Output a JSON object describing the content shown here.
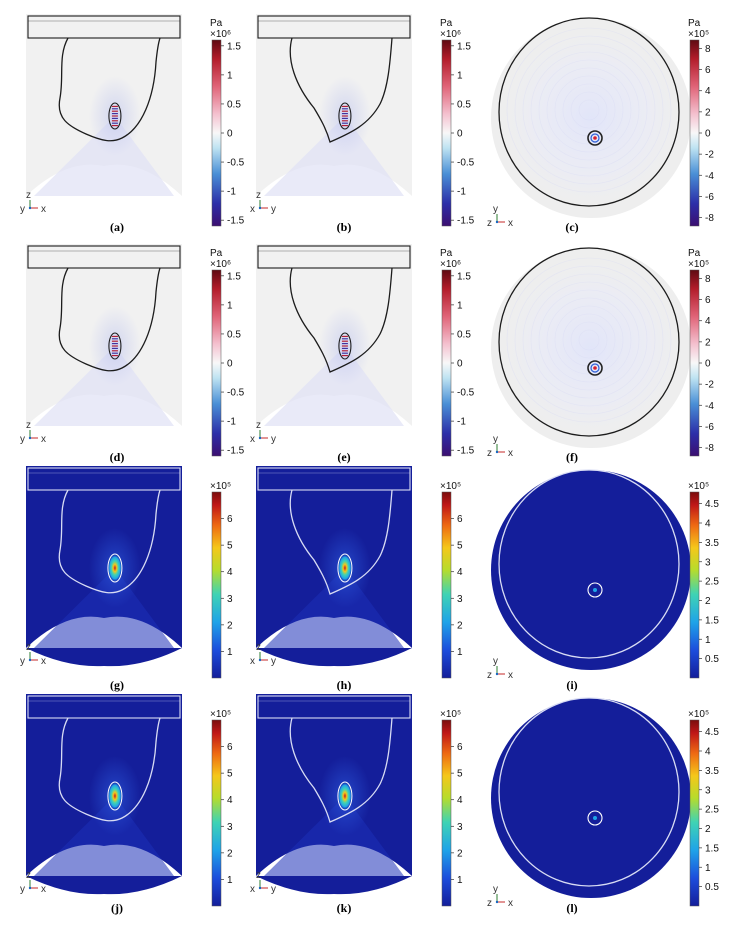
{
  "colors": {
    "pressure_bg": "#f1f1f1",
    "intensity_bg": "#141e9a",
    "outline_dark": "#1c1c1c",
    "outline_light": "#d8dcf4",
    "axis_z": "#2e7d32",
    "axis_x": "#c62828",
    "axis_y": "#1565c0"
  },
  "panels": [
    {
      "id": "a",
      "caption": "(a)",
      "type": "pressure",
      "view": "side",
      "dark": false,
      "offset": false,
      "axes": {
        "vertical": "z",
        "left": "y",
        "right": "x"
      }
    },
    {
      "id": "b",
      "caption": "(b)",
      "type": "pressure",
      "view": "side",
      "dark": false,
      "offset": true,
      "axes": {
        "vertical": "z",
        "left": "x",
        "right": "y"
      }
    },
    {
      "id": "c",
      "caption": "(c)",
      "type": "pressure",
      "view": "top",
      "dark": false,
      "axes": {
        "vertical": "y",
        "left": "z",
        "right": "x"
      }
    },
    {
      "id": "d",
      "caption": "(d)",
      "type": "pressure",
      "view": "side",
      "dark": false,
      "offset": false,
      "axes": {
        "vertical": "z",
        "left": "y",
        "right": "x"
      }
    },
    {
      "id": "e",
      "caption": "(e)",
      "type": "pressure",
      "view": "side",
      "dark": false,
      "offset": true,
      "axes": {
        "vertical": "z",
        "left": "x",
        "right": "y"
      }
    },
    {
      "id": "f",
      "caption": "(f)",
      "type": "pressure",
      "view": "top",
      "dark": false,
      "axes": {
        "vertical": "y",
        "left": "z",
        "right": "x"
      }
    },
    {
      "id": "g",
      "caption": "(g)",
      "type": "intensity",
      "view": "side",
      "dark": true,
      "offset": false,
      "axes": {
        "vertical": "z",
        "left": "y",
        "right": "x"
      }
    },
    {
      "id": "h",
      "caption": "(h)",
      "type": "intensity",
      "view": "side",
      "dark": true,
      "offset": true,
      "axes": {
        "vertical": "z",
        "left": "x",
        "right": "y"
      }
    },
    {
      "id": "i",
      "caption": "(i)",
      "type": "intensity",
      "view": "top",
      "dark": true,
      "axes": {
        "vertical": "y",
        "left": "z",
        "right": "x"
      }
    },
    {
      "id": "j",
      "caption": "(j)",
      "type": "intensity",
      "view": "side",
      "dark": true,
      "offset": false,
      "axes": {
        "vertical": "z",
        "left": "y",
        "right": "x"
      }
    },
    {
      "id": "k",
      "caption": "(k)",
      "type": "intensity",
      "view": "side",
      "dark": true,
      "offset": true,
      "axes": {
        "vertical": "z",
        "left": "x",
        "right": "y"
      }
    },
    {
      "id": "l",
      "caption": "(l)",
      "type": "intensity",
      "view": "top",
      "dark": true,
      "axes": {
        "vertical": "y",
        "left": "z",
        "right": "x"
      }
    }
  ],
  "colorbars": [
    {
      "id": "cb-a",
      "scheme": "diverging",
      "unit": "Pa",
      "exponent": "×10⁶",
      "ticks": [
        "1.5",
        "1",
        "0.5",
        "0",
        "-0.5",
        "-1",
        "-1.5"
      ],
      "range": [
        -1.6,
        1.6
      ],
      "tick_values": [
        1.5,
        1,
        0.5,
        0,
        -0.5,
        -1,
        -1.5
      ]
    },
    {
      "id": "cb-b",
      "scheme": "diverging",
      "unit": "Pa",
      "exponent": "×10⁶",
      "ticks": [
        "1.5",
        "1",
        "0.5",
        "0",
        "-0.5",
        "-1",
        "-1.5"
      ],
      "range": [
        -1.6,
        1.6
      ],
      "tick_values": [
        1.5,
        1,
        0.5,
        0,
        -0.5,
        -1,
        -1.5
      ]
    },
    {
      "id": "cb-c",
      "scheme": "diverging",
      "unit": "Pa",
      "exponent": "×10⁵",
      "ticks": [
        "8",
        "6",
        "4",
        "2",
        "0",
        "-2",
        "-4",
        "-6",
        "-8"
      ],
      "range": [
        -8.8,
        8.8
      ],
      "tick_values": [
        8,
        6,
        4,
        2,
        0,
        -2,
        -4,
        -6,
        -8
      ]
    },
    {
      "id": "cb-d",
      "scheme": "diverging",
      "unit": "Pa",
      "exponent": "×10⁶",
      "ticks": [
        "1.5",
        "1",
        "0.5",
        "0",
        "-0.5",
        "-1",
        "-1.5"
      ],
      "range": [
        -1.6,
        1.6
      ],
      "tick_values": [
        1.5,
        1,
        0.5,
        0,
        -0.5,
        -1,
        -1.5
      ]
    },
    {
      "id": "cb-e",
      "scheme": "diverging",
      "unit": "Pa",
      "exponent": "×10⁶",
      "ticks": [
        "1.5",
        "1",
        "0.5",
        "0",
        "-0.5",
        "-1",
        "-1.5"
      ],
      "range": [
        -1.6,
        1.6
      ],
      "tick_values": [
        1.5,
        1,
        0.5,
        0,
        -0.5,
        -1,
        -1.5
      ]
    },
    {
      "id": "cb-f",
      "scheme": "diverging",
      "unit": "Pa",
      "exponent": "×10⁵",
      "ticks": [
        "8",
        "6",
        "4",
        "2",
        "0",
        "-2",
        "-4",
        "-6",
        "-8"
      ],
      "range": [
        -8.8,
        8.8
      ],
      "tick_values": [
        8,
        6,
        4,
        2,
        0,
        -2,
        -4,
        -6,
        -8
      ]
    },
    {
      "id": "cb-g",
      "scheme": "jet",
      "unit": "",
      "exponent": "×10⁵",
      "ticks": [
        "6",
        "5",
        "4",
        "3",
        "2",
        "1"
      ],
      "range": [
        0,
        7
      ],
      "tick_values": [
        6,
        5,
        4,
        3,
        2,
        1
      ]
    },
    {
      "id": "cb-h",
      "scheme": "jet",
      "unit": "",
      "exponent": "×10⁵",
      "ticks": [
        "6",
        "5",
        "4",
        "3",
        "2",
        "1"
      ],
      "range": [
        0,
        7
      ],
      "tick_values": [
        6,
        5,
        4,
        3,
        2,
        1
      ]
    },
    {
      "id": "cb-i",
      "scheme": "jet",
      "unit": "",
      "exponent": "×10⁵",
      "ticks": [
        "4.5",
        "4",
        "3.5",
        "3",
        "2.5",
        "2",
        "1.5",
        "1",
        "0.5"
      ],
      "range": [
        0,
        4.8
      ],
      "tick_values": [
        4.5,
        4,
        3.5,
        3,
        2.5,
        2,
        1.5,
        1,
        0.5
      ]
    },
    {
      "id": "cb-j",
      "scheme": "jet",
      "unit": "",
      "exponent": "×10⁵",
      "ticks": [
        "6",
        "5",
        "4",
        "3",
        "2",
        "1"
      ],
      "range": [
        0,
        7
      ],
      "tick_values": [
        6,
        5,
        4,
        3,
        2,
        1
      ]
    },
    {
      "id": "cb-k",
      "scheme": "jet",
      "unit": "",
      "exponent": "×10⁵",
      "ticks": [
        "6",
        "5",
        "4",
        "3",
        "2",
        "1"
      ],
      "range": [
        0,
        7
      ],
      "tick_values": [
        6,
        5,
        4,
        3,
        2,
        1
      ]
    },
    {
      "id": "cb-l",
      "scheme": "jet",
      "unit": "",
      "exponent": "×10⁵",
      "ticks": [
        "4.5",
        "4",
        "3.5",
        "3",
        "2.5",
        "2",
        "1.5",
        "1",
        "0.5"
      ],
      "range": [
        0,
        4.8
      ],
      "tick_values": [
        4.5,
        4,
        3.5,
        3,
        2.5,
        2,
        1.5,
        1,
        0.5
      ]
    }
  ]
}
